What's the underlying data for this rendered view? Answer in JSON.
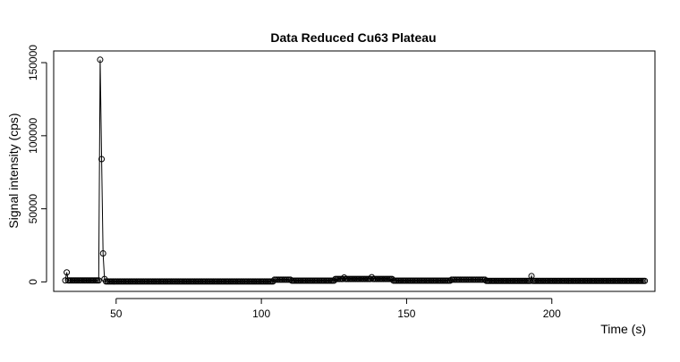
{
  "chart_data": {
    "type": "line",
    "title": "Data Reduced Cu63 Plateau",
    "xlabel": "Time (s)",
    "ylabel": "Signal intensity (cps)",
    "xlim": [
      28.5,
      235.5
    ],
    "ylim": [
      -6500,
      158000
    ],
    "xticks": [
      50,
      100,
      150,
      200
    ],
    "yticks": [
      0,
      50000,
      100000,
      150000
    ],
    "xtick_labels": [
      "50",
      "100",
      "150",
      "200"
    ],
    "ytick_labels": [
      "0",
      "50000",
      "100000",
      "150000"
    ],
    "series": [
      {
        "marker": "open-circle",
        "line": true,
        "color": "#000000",
        "x_start": 32.5,
        "x_step": 0.5,
        "y_baseline_segments": [
          {
            "from": 32.5,
            "to": 44.0,
            "y": 1000
          },
          {
            "from": 46.5,
            "to": 104.0,
            "y": 300
          },
          {
            "from": 104.0,
            "to": 110.0,
            "y": 1500
          },
          {
            "from": 110.0,
            "to": 125.0,
            "y": 800
          },
          {
            "from": 125.0,
            "to": 145.0,
            "y": 2000
          },
          {
            "from": 145.0,
            "to": 165.0,
            "y": 800
          },
          {
            "from": 165.0,
            "to": 177.0,
            "y": 1500
          },
          {
            "from": 177.0,
            "to": 232.0,
            "y": 700
          }
        ],
        "notable_points": [
          {
            "x": 33.0,
            "y": 6500
          },
          {
            "x": 44.0,
            "y": 1000
          },
          {
            "x": 44.5,
            "y": 152000
          },
          {
            "x": 45.0,
            "y": 84000
          },
          {
            "x": 45.5,
            "y": 19500
          },
          {
            "x": 46.0,
            "y": 2000
          },
          {
            "x": 128.5,
            "y": 3000
          },
          {
            "x": 138.0,
            "y": 3200
          },
          {
            "x": 193.0,
            "y": 4000
          }
        ]
      }
    ]
  }
}
